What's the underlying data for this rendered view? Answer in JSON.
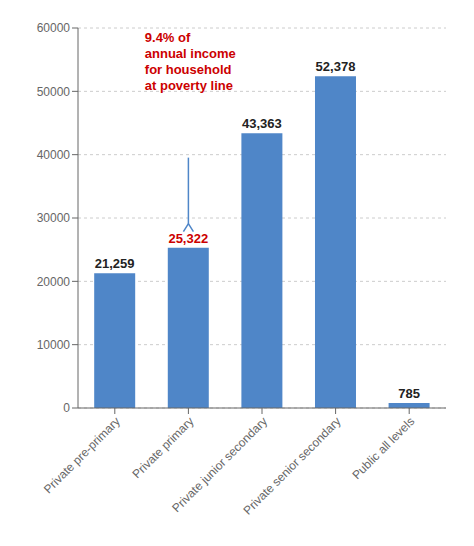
{
  "chart_data": {
    "type": "bar",
    "categories": [
      "Private pre-primary",
      "Private primary",
      "Private junior secondary",
      "Private senior secondary",
      "Public all levels"
    ],
    "values": [
      21259,
      25322,
      43363,
      52378,
      785
    ],
    "value_labels": [
      "21,259",
      "25,322",
      "43,363",
      "52,378",
      "785"
    ],
    "data_labels": true,
    "color": "#4f86c8",
    "ylim": [
      0,
      60000
    ],
    "yticks": [
      0,
      10000,
      20000,
      30000,
      40000,
      50000,
      60000
    ],
    "grid": true,
    "annotations": [
      {
        "text": "9.4% of\nannual income\nfor household\nat poverty line",
        "color": "#cc0000",
        "category": "Private primary"
      }
    ]
  }
}
